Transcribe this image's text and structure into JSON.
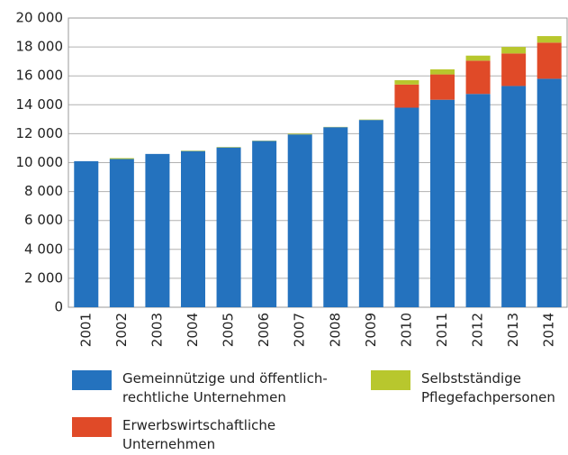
{
  "chart_data": {
    "type": "stacked_bar",
    "categories": [
      "2001",
      "2002",
      "2003",
      "2004",
      "2005",
      "2006",
      "2007",
      "2008",
      "2009",
      "2010",
      "2011",
      "2012",
      "2013",
      "2014"
    ],
    "series": [
      {
        "name": "Gemeinnützige und öffentlich-rechtliche Unternehmen",
        "color": "#2472be",
        "values": [
          10100,
          10250,
          10600,
          10800,
          11050,
          11500,
          11950,
          12450,
          12950,
          13800,
          14350,
          14750,
          15300,
          15800
        ]
      },
      {
        "name": "Erwerbswirtschaftliche Unternehmen",
        "color": "#e04a28",
        "values": [
          0,
          0,
          0,
          0,
          0,
          0,
          0,
          0,
          0,
          1600,
          1750,
          2300,
          2250,
          2500
        ]
      },
      {
        "name": "Selbstständige Pflegefachpersonen",
        "color": "#b8c72d",
        "values": [
          0,
          60,
          0,
          30,
          30,
          20,
          50,
          20,
          30,
          300,
          350,
          350,
          450,
          450
        ]
      }
    ],
    "ylim": [
      0,
      20000
    ],
    "yticks": [
      0,
      {
        "value": 2000,
        "label": "2 000"
      },
      {
        "value": 4000,
        "label": "4 000"
      },
      {
        "value": 6000,
        "label": "6 000"
      },
      {
        "value": 8000,
        "label": "8 000"
      },
      {
        "value": 10000,
        "label": "10 000"
      },
      {
        "value": 12000,
        "label": "12 000"
      },
      {
        "value": 14000,
        "label": "14 000"
      },
      {
        "value": 16000,
        "label": "16 000"
      },
      {
        "value": 18000,
        "label": "18 000"
      },
      {
        "value": 20000,
        "label": "20 000"
      }
    ],
    "grid": true
  }
}
